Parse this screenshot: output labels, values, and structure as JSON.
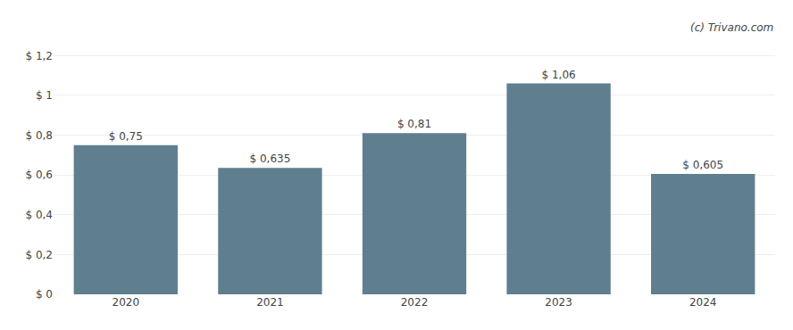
{
  "chart_data": {
    "type": "bar",
    "categories": [
      "2020",
      "2021",
      "2022",
      "2023",
      "2024"
    ],
    "values": [
      0.75,
      0.635,
      0.81,
      1.06,
      0.605
    ],
    "value_labels": [
      "$ 0,75",
      "$ 0,635",
      "$ 0,81",
      "$ 1,06",
      "$ 0,605"
    ],
    "data_labels": true,
    "color": "#5f7f8f",
    "ylim": [
      0,
      1.3
    ],
    "yticks": [
      {
        "value": 0,
        "label": "$ 0"
      },
      {
        "value": 0.2,
        "label": "$ 0,2"
      },
      {
        "value": 0.4,
        "label": "$ 0,4"
      },
      {
        "value": 0.6,
        "label": "$ 0,6"
      },
      {
        "value": 0.8,
        "label": "$ 0,8"
      },
      {
        "value": 1.0,
        "label": "$ 1"
      },
      {
        "value": 1.2,
        "label": "$ 1,2"
      }
    ],
    "grid": true,
    "annotations": [
      {
        "text": "(c) Trivano.com"
      }
    ]
  }
}
